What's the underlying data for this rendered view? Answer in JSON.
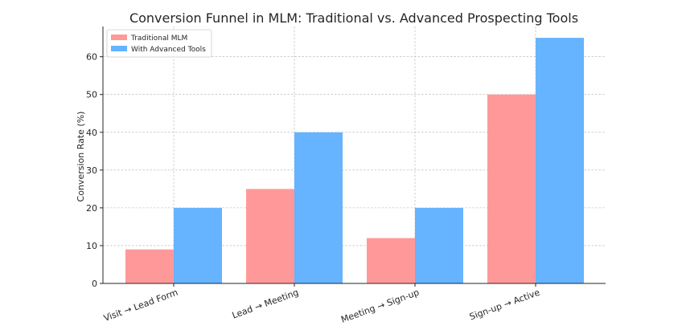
{
  "chart_data": {
    "type": "bar",
    "title": "Conversion Funnel in MLM: Traditional vs. Advanced Prospecting Tools",
    "xlabel": "",
    "ylabel": "Conversion Rate (%)",
    "categories": [
      "Visit → Lead Form",
      "Lead → Meeting",
      "Meeting → Sign-up",
      "Sign-up → Active"
    ],
    "series": [
      {
        "name": "Traditional MLM",
        "values": [
          9,
          25,
          12,
          50
        ],
        "color": "#ff9999"
      },
      {
        "name": "With Advanced Tools",
        "values": [
          20,
          40,
          20,
          65
        ],
        "color": "#66b3ff"
      }
    ],
    "ylim": [
      0,
      68
    ],
    "yticks": [
      0,
      10,
      20,
      30,
      40,
      50,
      60
    ],
    "grid": true,
    "legend_position": "top-left"
  }
}
